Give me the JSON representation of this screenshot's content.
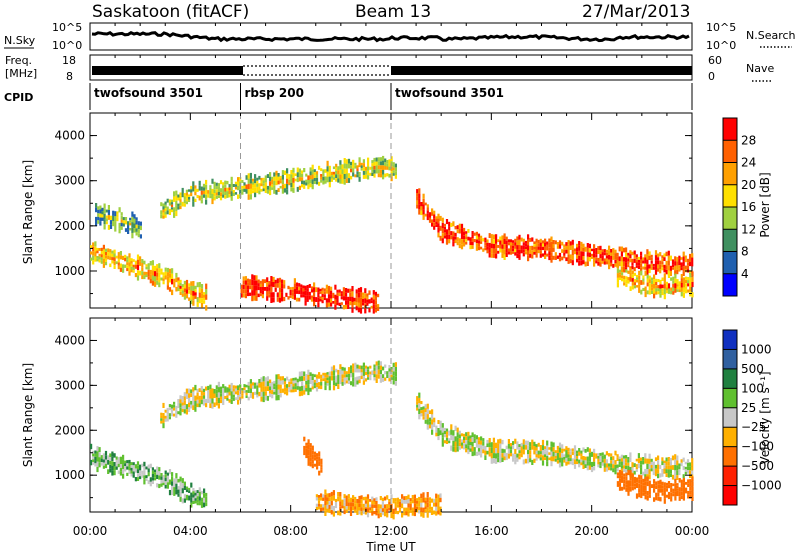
{
  "header": {
    "title": "Saskatoon (fitACF)",
    "beam": "Beam 13",
    "date": "27/Mar/2013"
  },
  "strip": {
    "nsky_label": "N.Sky",
    "nsearch_label": "N.Search",
    "freq_label_top": "Freq.",
    "freq_label_bottom": "[MHz]",
    "nave_label": "Nave",
    "cpid_label": "CPID",
    "noise_left_ticks": [
      "10^5",
      "10^0"
    ],
    "noise_right_ticks": [
      "10^5",
      "10^0"
    ],
    "freq_ticks": [
      "18",
      "8"
    ],
    "nave_ticks": [
      "60",
      "0"
    ]
  },
  "cpid_segments": [
    {
      "name": "twofsound 3501",
      "start_hr": 0,
      "end_hr": 6
    },
    {
      "name": "rbsp 200",
      "start_hr": 6,
      "end_hr": 12
    },
    {
      "name": "twofsound 3501",
      "start_hr": 12,
      "end_hr": 24
    }
  ],
  "panels": {
    "power_ylabel": "Slant Range [km]",
    "velocity_ylabel": "Slant Range [km]",
    "y_ticks": [
      "4000",
      "3000",
      "2000",
      "1000"
    ],
    "x_ticks": [
      "00:00",
      "04:00",
      "08:00",
      "12:00",
      "16:00",
      "20:00",
      "00:00"
    ],
    "xlabel": "Time UT"
  },
  "power_scale": {
    "label": "Power [dB]",
    "ticks": [
      "28",
      "24",
      "20",
      "16",
      "12",
      "8",
      "4"
    ],
    "colors": [
      "#ff0000",
      "#ff6000",
      "#ffa000",
      "#ffe000",
      "#a0d040",
      "#409060",
      "#2060b0",
      "#0000ff"
    ]
  },
  "velocity_scale": {
    "label": "Velocity [m s⁻¹]",
    "ticks": [
      "1000",
      "500",
      "100",
      "25",
      "−25",
      "−100",
      "−500",
      "−1000"
    ],
    "colors": [
      "#1030c0",
      "#3060a0",
      "#208040",
      "#60c030",
      "#c8c8c8",
      "#ffb000",
      "#ff7000",
      "#ff2000",
      "#ff0000"
    ]
  },
  "chart_data": [
    {
      "type": "heatmap",
      "title": "Power",
      "xlabel": "Time UT",
      "ylabel": "Slant Range [km]",
      "xlim": [
        0,
        24
      ],
      "ylim": [
        180,
        4500
      ],
      "colorbar_label": "Power [dB]",
      "colorbar_range": [
        0,
        30
      ],
      "bands": [
        {
          "hours": [
            0,
            1.0,
            2.0,
            3.0,
            3.8,
            4.6
          ],
          "range_km": [
            1400,
            1250,
            1050,
            850,
            550,
            420
          ],
          "value": 18
        },
        {
          "hours": [
            0.2,
            1.0,
            2.0
          ],
          "range_km": [
            2250,
            2150,
            1950
          ],
          "value": 10
        },
        {
          "hours": [
            2.8,
            4.0,
            6.0,
            8.0,
            10.0,
            11.5,
            12.2
          ],
          "range_km": [
            2300,
            2700,
            2850,
            3000,
            3200,
            3300,
            3250
          ],
          "value": 14
        },
        {
          "hours": [
            13.0,
            14.0,
            16.0,
            18.0,
            20.0,
            22.0,
            24.0
          ],
          "range_km": [
            2600,
            1900,
            1550,
            1500,
            1350,
            1200,
            1150
          ],
          "value": 24
        },
        {
          "hours": [
            6.0,
            8.0,
            10.0,
            11.5
          ],
          "range_km": [
            650,
            550,
            400,
            300
          ],
          "value": 26
        },
        {
          "hours": [
            21.0,
            22.5,
            24.0
          ],
          "range_km": [
            900,
            650,
            700
          ],
          "value": 18
        }
      ]
    },
    {
      "type": "heatmap",
      "title": "Velocity",
      "xlabel": "Time UT",
      "ylabel": "Slant Range [km]",
      "xlim": [
        0,
        24
      ],
      "ylim": [
        180,
        4500
      ],
      "colorbar_label": "Velocity [m s⁻¹]",
      "colorbar_range": [
        -1000,
        1000
      ],
      "bands": [
        {
          "hours": [
            0,
            1.5,
            3.0,
            3.8,
            4.6
          ],
          "range_km": [
            1400,
            1150,
            900,
            600,
            420
          ],
          "value": 60
        },
        {
          "hours": [
            2.8,
            4.0,
            6.0,
            8.0,
            10.0,
            11.5,
            12.2
          ],
          "range_km": [
            2300,
            2700,
            2850,
            3000,
            3200,
            3300,
            3250
          ],
          "value": 0
        },
        {
          "hours": [
            13.0,
            14.0,
            16.0,
            18.0,
            20.0,
            22.0,
            24.0
          ],
          "range_km": [
            2600,
            1900,
            1550,
            1500,
            1350,
            1200,
            1150
          ],
          "value": 0
        },
        {
          "hours": [
            8.5,
            9.2
          ],
          "range_km": [
            1600,
            1200
          ],
          "value": -400
        },
        {
          "hours": [
            9.0,
            11.5,
            14.0
          ],
          "range_km": [
            400,
            300,
            350
          ],
          "value": -80
        },
        {
          "hours": [
            21.0,
            22.5,
            24.0
          ],
          "range_km": [
            900,
            650,
            700
          ],
          "value": -300
        }
      ]
    }
  ]
}
